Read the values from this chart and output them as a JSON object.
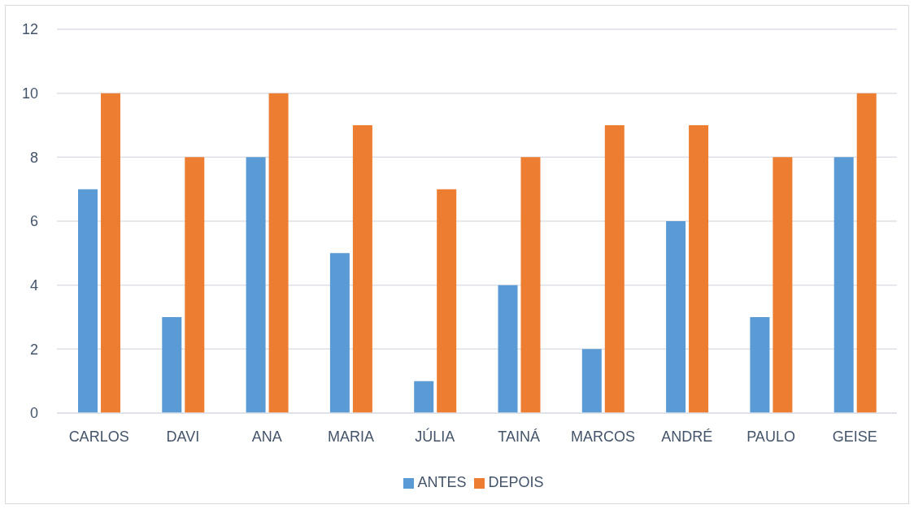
{
  "chart_data": {
    "type": "bar",
    "categories": [
      "CARLOS",
      "DAVI",
      "ANA",
      "MARIA",
      "JÚLIA",
      "TAINÁ",
      "MARCOS",
      "ANDRÉ",
      "PAULO",
      "GEISE"
    ],
    "series": [
      {
        "name": "ANTES",
        "color": "#5b9bd5",
        "values": [
          7,
          3,
          8,
          5,
          1,
          4,
          2,
          6,
          3,
          8
        ]
      },
      {
        "name": "DEPOIS",
        "color": "#ed7d31",
        "values": [
          10,
          8,
          10,
          9,
          7,
          8,
          9,
          9,
          8,
          10
        ]
      }
    ],
    "ylim": [
      0,
      12
    ],
    "yticks": [
      0,
      2,
      4,
      6,
      8,
      10,
      12
    ],
    "grid": "y",
    "legend": "bottom"
  }
}
